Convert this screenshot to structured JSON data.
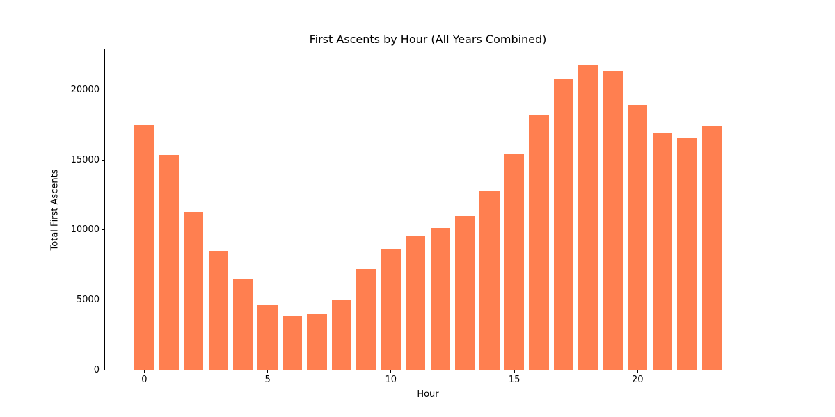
{
  "chart_data": {
    "type": "bar",
    "title": "First Ascents by Hour (All Years Combined)",
    "xlabel": "Hour",
    "ylabel": "Total First Ascents",
    "categories": [
      0,
      1,
      2,
      3,
      4,
      5,
      6,
      7,
      8,
      9,
      10,
      11,
      12,
      13,
      14,
      15,
      16,
      17,
      18,
      19,
      20,
      21,
      22,
      23
    ],
    "values": [
      17500,
      15350,
      11300,
      8500,
      6500,
      4600,
      3900,
      4000,
      5000,
      7200,
      8650,
      9600,
      10150,
      11000,
      12750,
      15450,
      18200,
      20800,
      21750,
      21350,
      18950,
      16900,
      16550,
      17400
    ],
    "xticks": [
      0,
      5,
      10,
      15,
      20
    ],
    "yticks": [
      0,
      5000,
      10000,
      15000,
      20000
    ],
    "xlim": [
      -1.59,
      24.59
    ],
    "ylim": [
      0,
      22900
    ],
    "bar_color": "#FF7F50",
    "bar_width_fraction": 0.8,
    "grid": false,
    "legend": null,
    "background_color": "#FFFFFF",
    "axis_color": "#000000",
    "text_color": "#000000"
  }
}
